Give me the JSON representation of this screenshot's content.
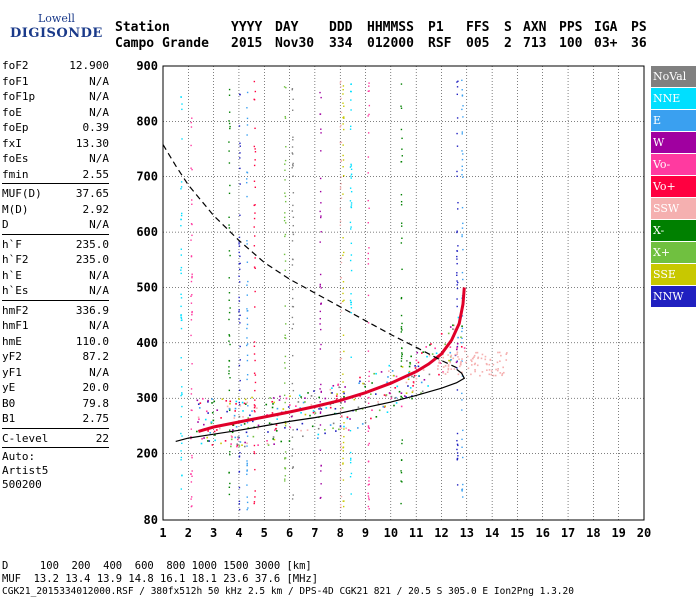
{
  "logo": {
    "brand_top": "Lowell",
    "brand_bottom": "DIGISONDE"
  },
  "header": {
    "labels": [
      "Station",
      "YYYY",
      "DAY",
      "DDD",
      "HHMMSS",
      "P1",
      "FFS",
      "S",
      "AXN",
      "PPS",
      "IGA",
      "PS"
    ],
    "values": [
      "Campo Grande",
      "2015",
      "Nov30",
      "334",
      "012000",
      "RSF",
      "005",
      "2",
      "713",
      "100",
      "03+",
      "36"
    ]
  },
  "params": [
    {
      "group": [
        {
          "name": "foF2",
          "value": "12.900"
        },
        {
          "name": "foF1",
          "value": "N/A"
        },
        {
          "name": "foF1p",
          "value": "N/A"
        },
        {
          "name": "foE",
          "value": "N/A"
        },
        {
          "name": "foEp",
          "value": "0.39"
        },
        {
          "name": "fxI",
          "value": "13.30"
        },
        {
          "name": "foEs",
          "value": "N/A"
        },
        {
          "name": "fmin",
          "value": "2.55"
        }
      ]
    },
    {
      "group": [
        {
          "name": "MUF(D)",
          "value": "37.65"
        },
        {
          "name": "M(D)",
          "value": "2.92"
        },
        {
          "name": "D",
          "value": "N/A"
        }
      ]
    },
    {
      "group": [
        {
          "name": "h`F",
          "value": "235.0"
        },
        {
          "name": "h`F2",
          "value": "235.0"
        },
        {
          "name": "h`E",
          "value": "N/A"
        },
        {
          "name": "h`Es",
          "value": "N/A"
        }
      ]
    },
    {
      "group": [
        {
          "name": "hmF2",
          "value": "336.9"
        },
        {
          "name": "hmF1",
          "value": "N/A"
        },
        {
          "name": "hmE",
          "value": "110.0"
        },
        {
          "name": "yF2",
          "value": "87.2"
        },
        {
          "name": "yF1",
          "value": "N/A"
        },
        {
          "name": "yE",
          "value": "20.0"
        },
        {
          "name": "B0",
          "value": "79.8"
        },
        {
          "name": "B1",
          "value": "2.75"
        }
      ]
    },
    {
      "group": [
        {
          "name": "C-level",
          "value": "22"
        }
      ]
    }
  ],
  "autoscale": {
    "line1": "Auto:",
    "line2": "Artist5",
    "line3": "500200"
  },
  "legend": [
    {
      "label": "NoVal",
      "color": "#808080"
    },
    {
      "label": "NNE",
      "color": "#00dfff"
    },
    {
      "label": "E",
      "color": "#3aa0f0"
    },
    {
      "label": "W",
      "color": "#a000a0"
    },
    {
      "label": "Vo-",
      "color": "#ff3aa0"
    },
    {
      "label": "Vo+",
      "color": "#ff0040"
    },
    {
      "label": "SSW",
      "color": "#f5b0b0"
    },
    {
      "label": "X-",
      "color": "#008000"
    },
    {
      "label": "X+",
      "color": "#70c040"
    },
    {
      "label": "SSE",
      "color": "#c8c800"
    },
    {
      "label": "NNW",
      "color": "#2020c0"
    }
  ],
  "footer": {
    "d_line": "D     100  200  400  600  800 1000 1500 3000 [km]",
    "muf_line": "MUF  13.2 13.4 13.9 14.8 16.1 18.1 23.6 37.6 [MHz]",
    "file_line": "CGK21_2015334012000.RSF / 380fx512h 50 kHz 2.5 km / DPS-4D CGK21 821 / 20.5 S 305.0 E Ion2Png 1.3.20"
  },
  "chart_data": {
    "type": "scatter",
    "xlabel": "",
    "ylabel": "",
    "xlim": [
      1,
      20
    ],
    "ylim": [
      80,
      900
    ],
    "x_ticks": [
      1,
      2,
      3,
      4,
      5,
      6,
      7,
      8,
      9,
      10,
      11,
      12,
      13,
      14,
      15,
      16,
      17,
      18,
      19,
      20
    ],
    "y_ticks": [
      80,
      200,
      300,
      400,
      500,
      600,
      700,
      800,
      900
    ],
    "grid": true,
    "legend_position": "right",
    "series": [
      {
        "name": "trace_f2",
        "x": [
          2.4,
          3,
          4,
          5,
          6,
          7,
          8,
          9,
          10,
          11,
          11.5,
          12,
          12.4,
          12.7,
          12.85,
          12.9
        ],
        "y": [
          240,
          248,
          257,
          266,
          275,
          285,
          296,
          310,
          327,
          348,
          362,
          380,
          405,
          435,
          470,
          500
        ]
      },
      {
        "name": "profile",
        "x": [
          1.5,
          2,
          3,
          4,
          5,
          6,
          7,
          8,
          9,
          10,
          11,
          12,
          12.6,
          12.9,
          12.8,
          12.6
        ],
        "y": [
          222,
          228,
          235,
          242,
          250,
          258,
          265,
          273,
          283,
          293,
          305,
          318,
          328,
          336,
          345,
          352
        ]
      },
      {
        "name": "muf_curve",
        "x": [
          1,
          1.5,
          2,
          3,
          4,
          5,
          6,
          7,
          8,
          9,
          10,
          11,
          12,
          12.6
        ],
        "y": [
          758,
          720,
          685,
          630,
          585,
          545,
          515,
          490,
          465,
          440,
          415,
          392,
          368,
          355
        ]
      }
    ]
  }
}
